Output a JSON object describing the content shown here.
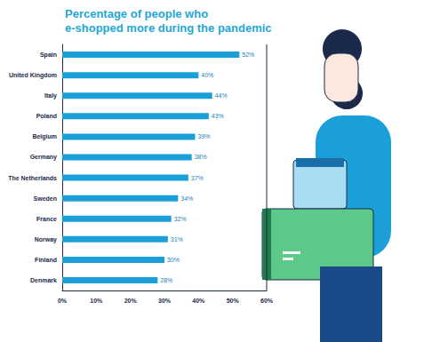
{
  "chart_data": {
    "type": "bar",
    "orientation": "horizontal",
    "title": "Percentage of people who\ne-shopped more during the pandemic",
    "categories": [
      "Spain",
      "United Kingdom",
      "Italy",
      "Poland",
      "Belgium",
      "Germany",
      "The Netherlands",
      "Sweden",
      "France",
      "Norway",
      "Finland",
      "Denmark"
    ],
    "values": [
      52,
      40,
      44,
      43,
      39,
      38,
      37,
      34,
      32,
      31,
      30,
      28
    ],
    "value_labels": [
      "52%",
      "40%",
      "44%",
      "43%",
      "39%",
      "38%",
      "37%",
      "34%",
      "32%",
      "31%",
      "30%",
      "28%"
    ],
    "color": "#1a9fd9",
    "xlim": [
      0,
      60
    ],
    "xticks": [
      {
        "value": 0,
        "label": "0%"
      },
      {
        "value": 10,
        "label": "10%"
      },
      {
        "value": 20,
        "label": "20%"
      },
      {
        "value": 30,
        "label": "30%"
      },
      {
        "value": 40,
        "label": "40%"
      },
      {
        "value": 50,
        "label": "50%"
      },
      {
        "value": 60,
        "label": "60%"
      }
    ],
    "grid": false,
    "data_labels": true
  }
}
